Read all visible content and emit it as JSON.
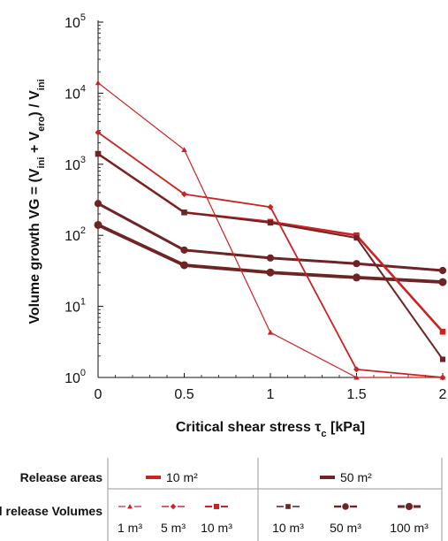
{
  "chart_data": {
    "type": "line",
    "xlabel": "Critical shear stress τc  [kPa]",
    "ylabel": "Volume growth VG = (Vini + Vero) / Vini",
    "x": [
      0,
      0.5,
      1,
      1.5,
      2
    ],
    "x_ticks": [
      "0",
      "0.5",
      "1",
      "1.5",
      "2"
    ],
    "y_scale": "log",
    "ylim": [
      1,
      100000
    ],
    "y_ticks": [
      "10^0",
      "10^1",
      "10^2",
      "10^3",
      "10^4",
      "10^5"
    ],
    "grid": false,
    "series": [
      {
        "name": "10 m² · 1 m³",
        "area": "10 m²",
        "volume": "1 m³",
        "color": "#cc2222",
        "marker": "triangle",
        "width": 1.2,
        "values": [
          14000,
          1600,
          4.3,
          1.0,
          1.0
        ]
      },
      {
        "name": "10 m² · 5 m³",
        "area": "10 m²",
        "volume": "5 m³",
        "color": "#cc2222",
        "marker": "diamond",
        "width": 1.8,
        "values": [
          2800,
          380,
          250,
          1.3,
          1.0
        ]
      },
      {
        "name": "10 m² · 10 m³",
        "area": "10 m²",
        "volume": "10 m³",
        "color": "#cc2222",
        "marker": "square",
        "width": 2.6,
        "values": [
          1400,
          210,
          155,
          100,
          4.4
        ]
      },
      {
        "name": "50 m² · 10 m³",
        "area": "50 m²",
        "volume": "10 m³",
        "color": "#6e2424",
        "marker": "square",
        "width": 2.0,
        "values": [
          1400,
          210,
          150,
          92,
          1.8
        ]
      },
      {
        "name": "50 m² · 50 m³",
        "area": "50 m²",
        "volume": "50 m³",
        "color": "#6e2424",
        "marker": "circle",
        "width": 3.0,
        "values": [
          280,
          62,
          48,
          40,
          32
        ]
      },
      {
        "name": "50 m² · 100 m³",
        "area": "50 m²",
        "volume": "100 m³",
        "color": "#6e2424",
        "marker": "circle",
        "width": 3.8,
        "values": [
          140,
          38,
          30,
          25.5,
          22
        ]
      }
    ]
  },
  "legend": {
    "areas_label": "Release areas",
    "volumes_label": "Initial release Volumes",
    "area_10": "10 m²",
    "area_50": "50 m²",
    "volumes": [
      "1 m³",
      "5 m³",
      "10 m³",
      "10 m³",
      "50 m³",
      "100 m³"
    ]
  }
}
